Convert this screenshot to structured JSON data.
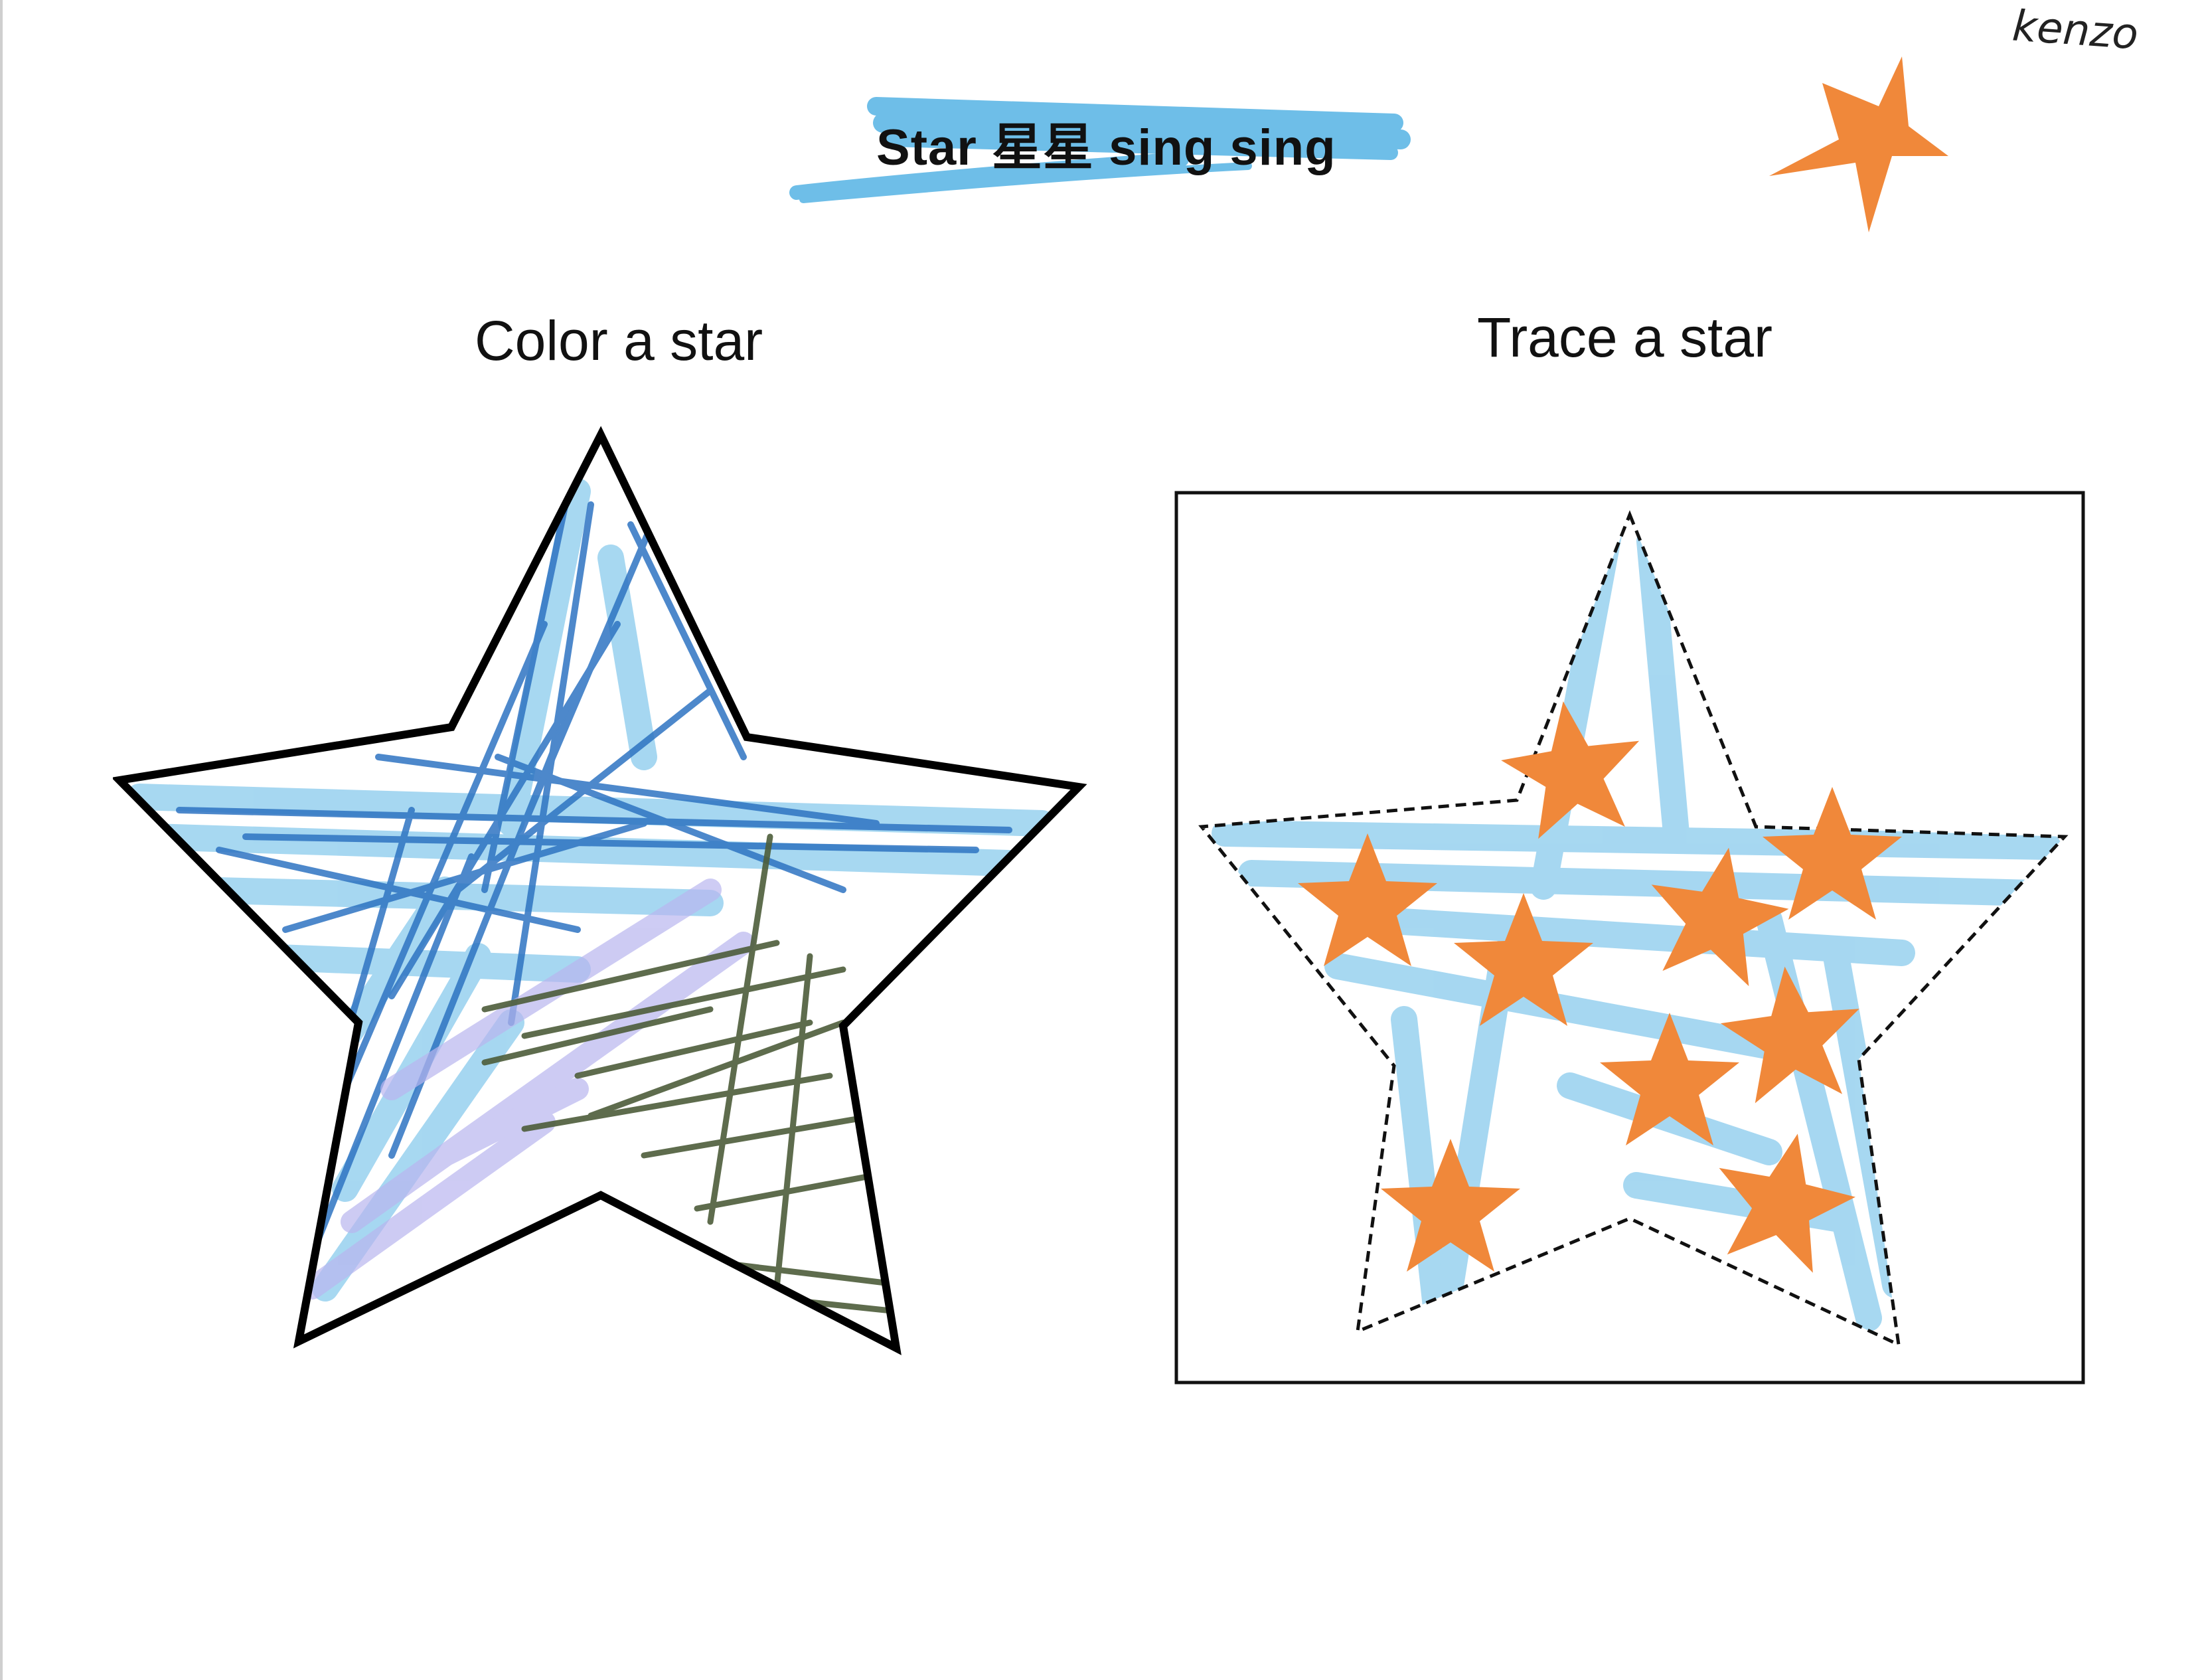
{
  "worksheet": {
    "title": "Star 星星 sing sing",
    "signature": "kenzo",
    "left_activity": {
      "heading": "Color a star"
    },
    "right_activity": {
      "heading": "Trace a star"
    }
  },
  "colors": {
    "crayon_light_blue": "#5fb8e6",
    "crayon_blue": "#2e74c2",
    "crayon_lavender": "#b9b6ef",
    "crayon_green": "#4d5d3a",
    "sticker_orange": "#f0883a",
    "outline": "#000000"
  },
  "icons": {
    "title_highlight": "crayon-scribble",
    "top_sticker": "orange-star-sticker",
    "color_star": "crayon-colored-star",
    "trace_star": "dashed-star-outline"
  },
  "stickers": {
    "on_traced_star": 9
  }
}
